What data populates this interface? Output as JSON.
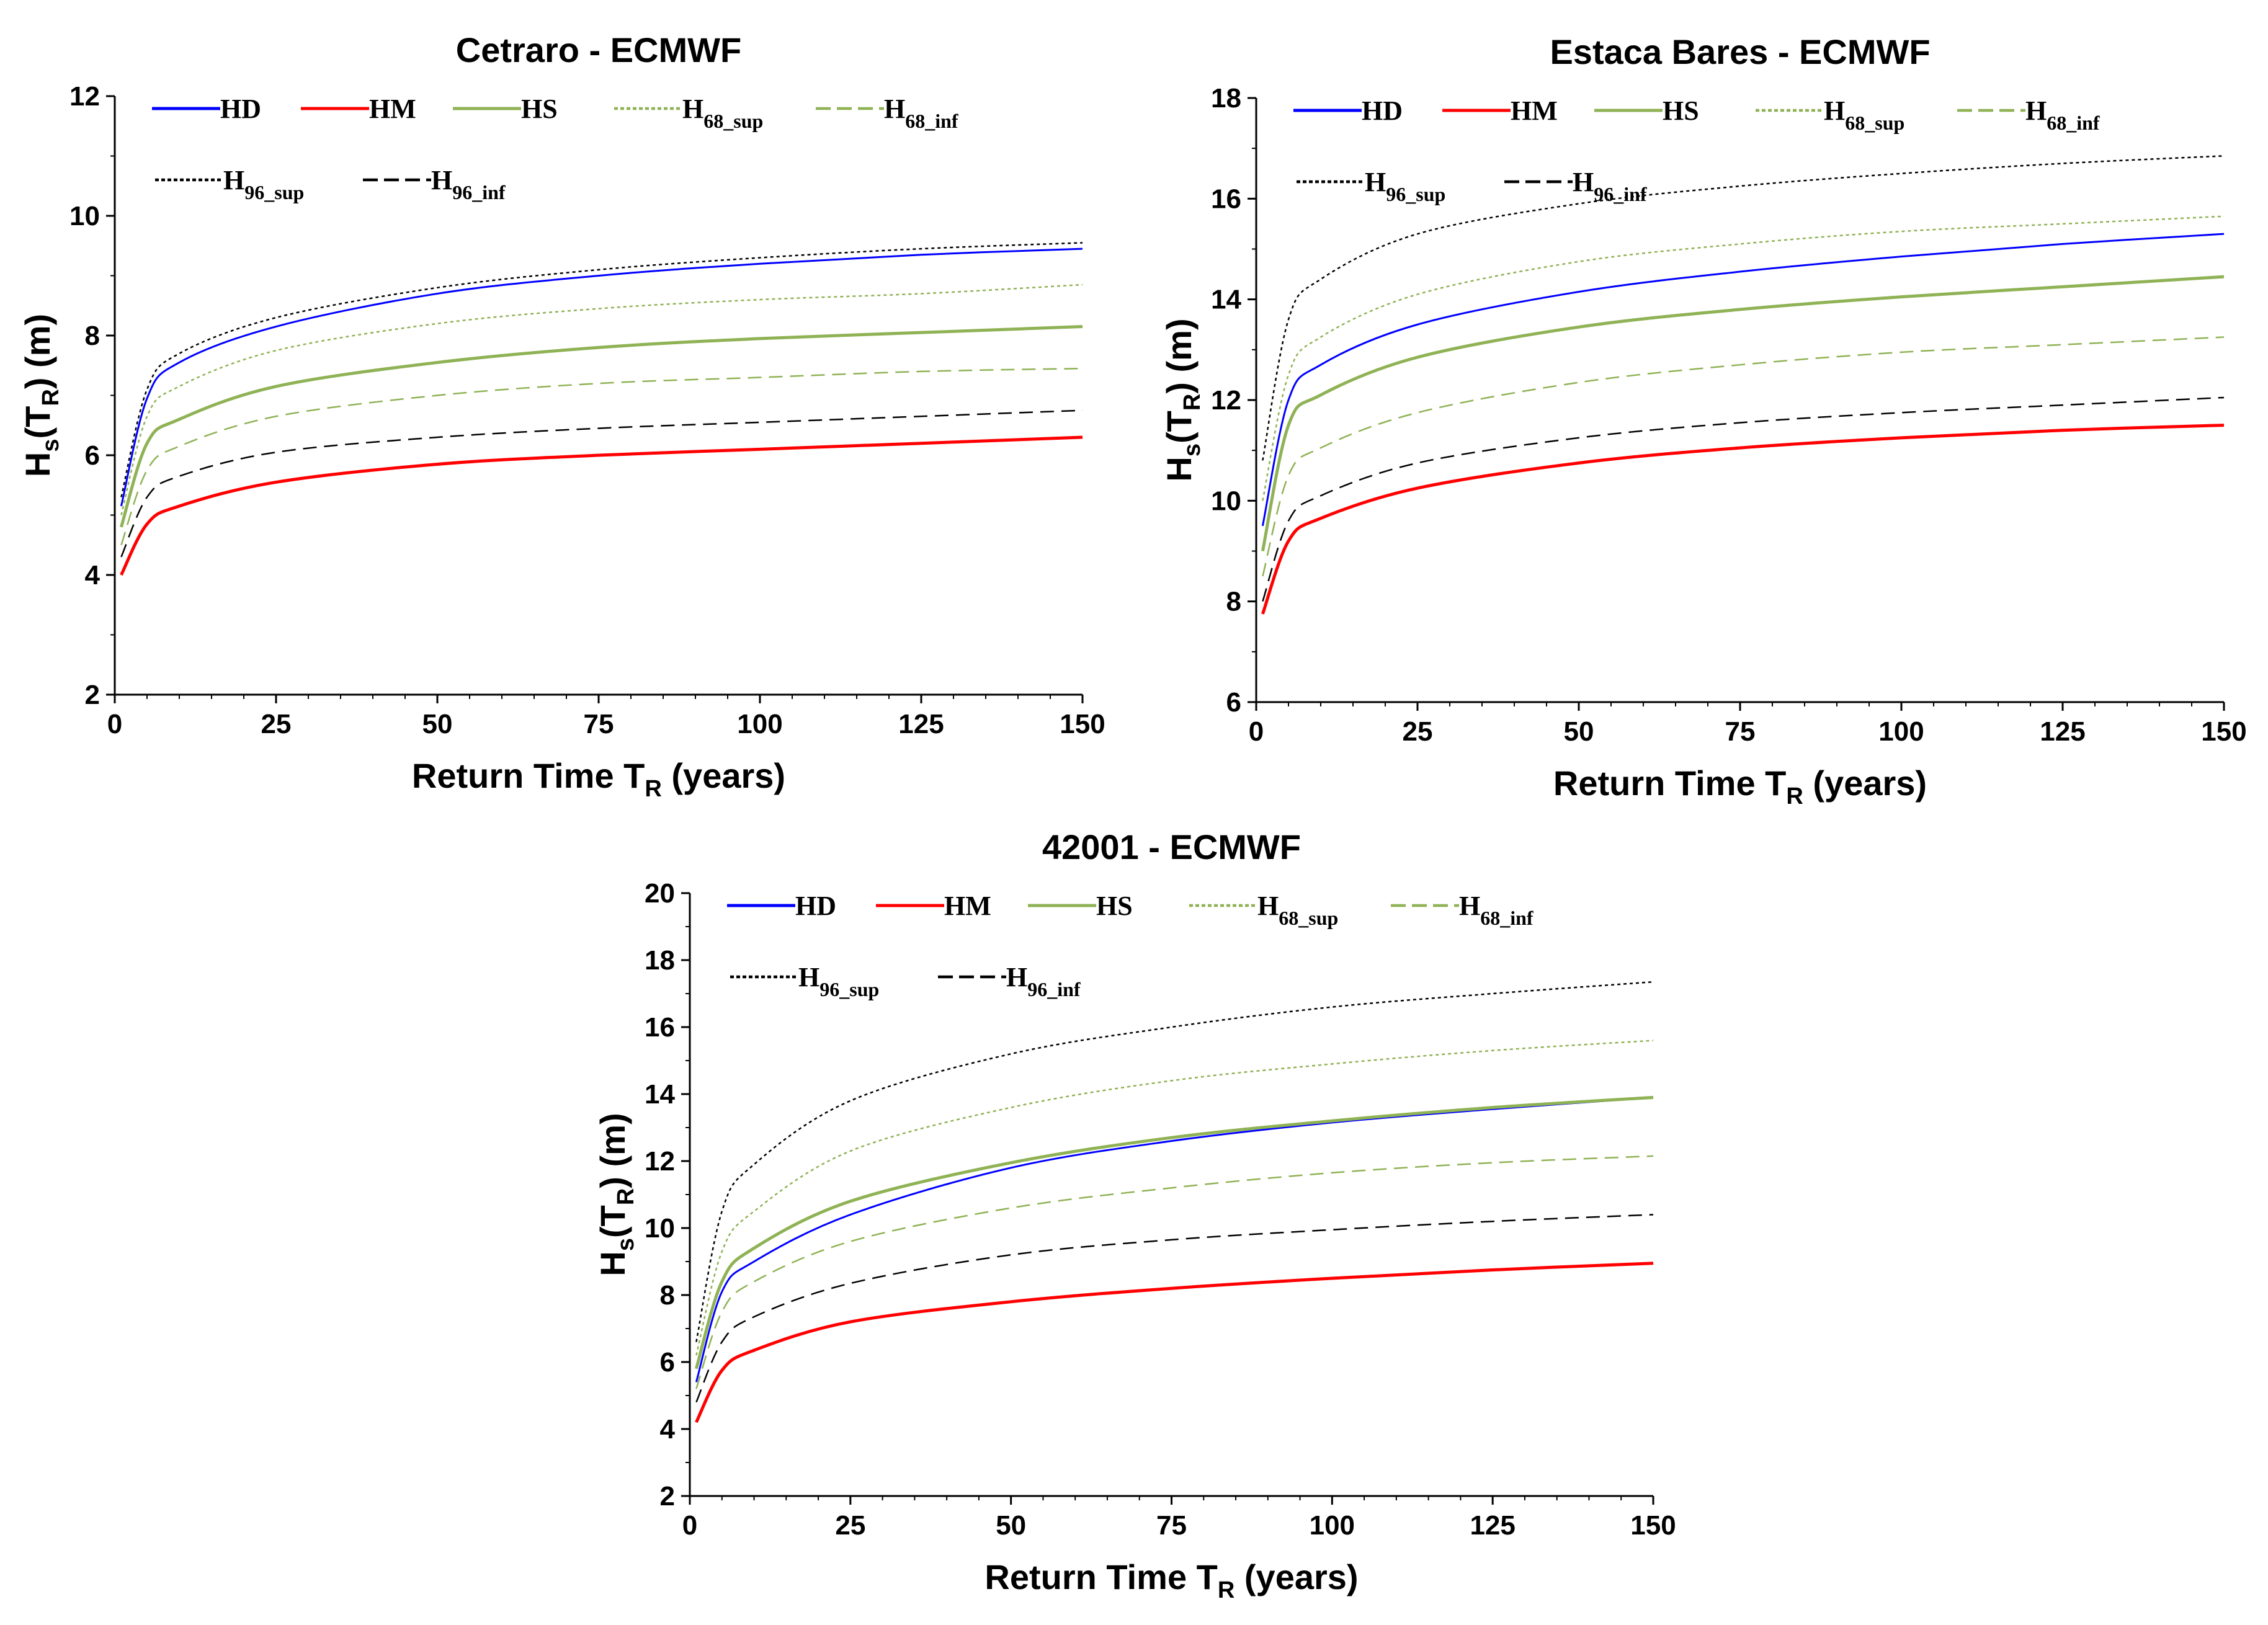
{
  "figure": "Return level curves",
  "legend_labels": {
    "HD": "HD",
    "HM": "HM",
    "HS": "HS",
    "H68_sup": {
      "base": "H",
      "sub": "68_sup"
    },
    "H68_inf": {
      "base": "H",
      "sub": "68_inf"
    },
    "H96_sup": {
      "base": "H",
      "sub": "96_sup"
    },
    "H96_inf": {
      "base": "H",
      "sub": "96_inf"
    }
  },
  "axis_labels": {
    "xlabel": {
      "text": "Return Time T",
      "sub": "R",
      "suffix": " (years)"
    },
    "ylabel": {
      "p1": "H",
      "s1": "s",
      "p2": "(T",
      "s2": "R",
      "p3": ")  (m)"
    }
  },
  "chart_data": [
    {
      "type": "line",
      "title": "Cetraro - ECMWF",
      "xlim": [
        0,
        150
      ],
      "ylim": [
        2,
        12
      ],
      "xticks": [
        0,
        25,
        50,
        75,
        100,
        125,
        150
      ],
      "yticks": [
        2,
        4,
        6,
        8,
        10,
        12
      ],
      "x": [
        1,
        5,
        10,
        25,
        50,
        75,
        100,
        125,
        150
      ],
      "series": [
        {
          "name": "HD",
          "color": "#0000ff",
          "style": "solid",
          "values": [
            5.15,
            6.95,
            7.55,
            8.15,
            8.7,
            9.0,
            9.2,
            9.35,
            9.45
          ]
        },
        {
          "name": "HM",
          "color": "#ff0000",
          "style": "solid",
          "values": [
            4.0,
            4.85,
            5.15,
            5.55,
            5.85,
            6.0,
            6.1,
            6.2,
            6.3
          ]
        },
        {
          "name": "HS",
          "color": "#8fb255",
          "style": "solid",
          "values": [
            4.8,
            6.2,
            6.6,
            7.15,
            7.55,
            7.8,
            7.95,
            8.05,
            8.15
          ]
        },
        {
          "name": "H68_sup",
          "color": "#8fb255",
          "style": "dotted",
          "values": [
            5.0,
            6.65,
            7.15,
            7.75,
            8.2,
            8.45,
            8.6,
            8.7,
            8.85
          ]
        },
        {
          "name": "H68_inf",
          "color": "#8fb255",
          "style": "dashed",
          "values": [
            4.5,
            5.75,
            6.15,
            6.65,
            7.0,
            7.2,
            7.3,
            7.4,
            7.45
          ]
        },
        {
          "name": "H96_sup",
          "color": "#000000",
          "style": "dotted",
          "values": [
            5.3,
            7.1,
            7.7,
            8.3,
            8.8,
            9.1,
            9.3,
            9.45,
            9.55
          ]
        },
        {
          "name": "H96_inf",
          "color": "#000000",
          "style": "dashed",
          "values": [
            4.3,
            5.3,
            5.65,
            6.05,
            6.3,
            6.45,
            6.55,
            6.65,
            6.75
          ]
        }
      ]
    },
    {
      "type": "line",
      "title": "Estaca Bares - ECMWF",
      "xlim": [
        0,
        150
      ],
      "ylim": [
        6,
        18
      ],
      "xticks": [
        0,
        25,
        50,
        75,
        100,
        125,
        150
      ],
      "yticks": [
        6,
        8,
        10,
        12,
        14,
        16,
        18
      ],
      "x": [
        1,
        5,
        10,
        25,
        50,
        75,
        100,
        125,
        150
      ],
      "series": [
        {
          "name": "HD",
          "color": "#0000ff",
          "style": "solid",
          "values": [
            9.5,
            12.0,
            12.7,
            13.5,
            14.15,
            14.55,
            14.85,
            15.1,
            15.3
          ]
        },
        {
          "name": "HM",
          "color": "#ff0000",
          "style": "solid",
          "values": [
            7.75,
            9.2,
            9.65,
            10.25,
            10.75,
            11.05,
            11.25,
            11.4,
            11.5
          ]
        },
        {
          "name": "HS",
          "color": "#8fb255",
          "style": "solid",
          "values": [
            9.0,
            11.5,
            12.1,
            12.85,
            13.45,
            13.8,
            14.05,
            14.25,
            14.45
          ]
        },
        {
          "name": "H68_sup",
          "color": "#8fb255",
          "style": "dotted",
          "values": [
            10.0,
            12.5,
            13.25,
            14.1,
            14.75,
            15.1,
            15.35,
            15.5,
            15.65
          ]
        },
        {
          "name": "H68_inf",
          "color": "#8fb255",
          "style": "dashed",
          "values": [
            8.5,
            10.5,
            11.05,
            11.75,
            12.35,
            12.7,
            12.95,
            13.1,
            13.25
          ]
        },
        {
          "name": "H96_sup",
          "color": "#000000",
          "style": "dotted",
          "values": [
            10.8,
            13.6,
            14.4,
            15.3,
            15.9,
            16.25,
            16.5,
            16.7,
            16.85
          ]
        },
        {
          "name": "H96_inf",
          "color": "#000000",
          "style": "dashed",
          "values": [
            8.0,
            9.6,
            10.1,
            10.75,
            11.25,
            11.55,
            11.75,
            11.9,
            12.05
          ]
        }
      ]
    },
    {
      "type": "line",
      "title": "42001 - ECMWF",
      "xlim": [
        0,
        150
      ],
      "ylim": [
        2,
        20
      ],
      "xticks": [
        0,
        25,
        50,
        75,
        100,
        125,
        150
      ],
      "yticks": [
        2,
        4,
        6,
        8,
        10,
        12,
        14,
        16,
        18,
        20
      ],
      "x": [
        1,
        5,
        10,
        25,
        50,
        75,
        100,
        125,
        150
      ],
      "series": [
        {
          "name": "HD",
          "color": "#0000ff",
          "style": "solid",
          "values": [
            5.4,
            8.1,
            9.0,
            10.4,
            11.8,
            12.6,
            13.15,
            13.55,
            13.9
          ]
        },
        {
          "name": "HM",
          "color": "#ff0000",
          "style": "solid",
          "values": [
            4.2,
            5.75,
            6.35,
            7.2,
            7.8,
            8.2,
            8.5,
            8.75,
            8.95
          ]
        },
        {
          "name": "HS",
          "color": "#8fb255",
          "style": "solid",
          "values": [
            5.8,
            8.4,
            9.4,
            10.8,
            11.95,
            12.7,
            13.2,
            13.6,
            13.9
          ]
        },
        {
          "name": "H68_sup",
          "color": "#8fb255",
          "style": "dotted",
          "values": [
            6.2,
            9.3,
            10.5,
            12.3,
            13.6,
            14.4,
            14.9,
            15.3,
            15.6
          ]
        },
        {
          "name": "H68_inf",
          "color": "#8fb255",
          "style": "dashed",
          "values": [
            5.2,
            7.5,
            8.4,
            9.6,
            10.6,
            11.2,
            11.65,
            11.95,
            12.15
          ]
        },
        {
          "name": "H96_sup",
          "color": "#000000",
          "style": "dotted",
          "values": [
            6.6,
            10.5,
            11.9,
            13.8,
            15.2,
            16.0,
            16.6,
            17.0,
            17.35
          ]
        },
        {
          "name": "H96_inf",
          "color": "#000000",
          "style": "dashed",
          "values": [
            4.8,
            6.6,
            7.35,
            8.35,
            9.2,
            9.65,
            9.95,
            10.2,
            10.4
          ]
        }
      ]
    }
  ]
}
